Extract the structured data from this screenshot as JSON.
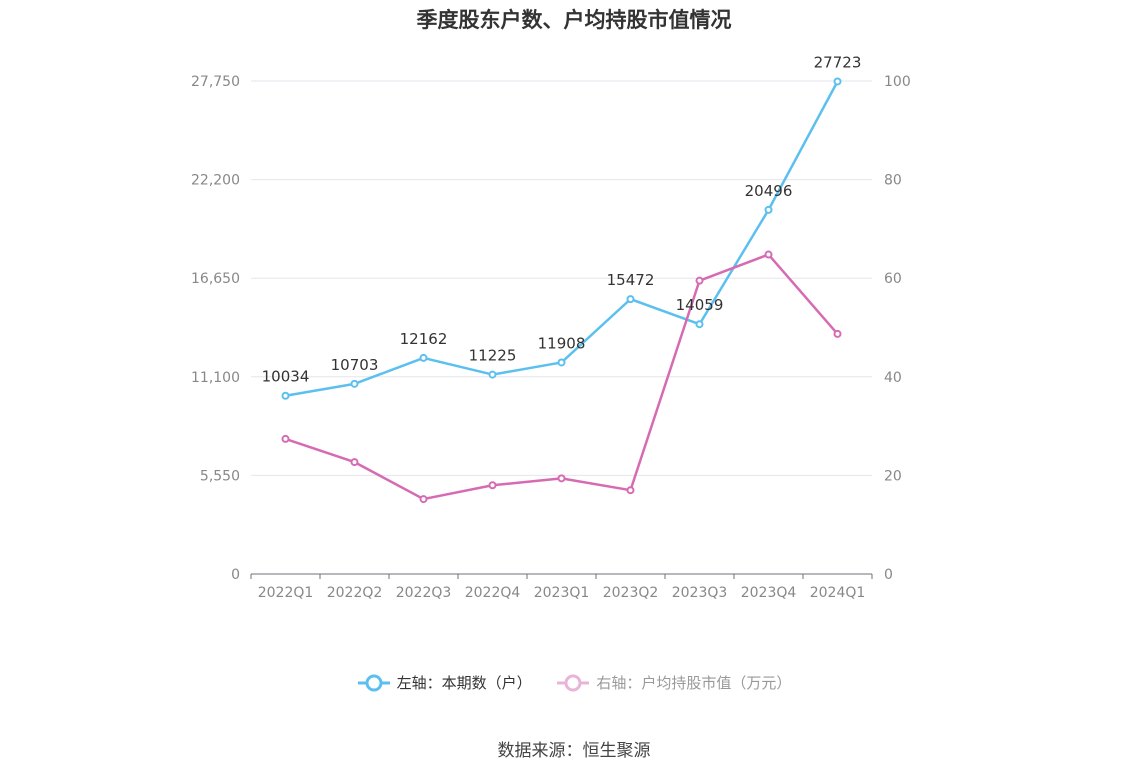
{
  "title": "季度股东户数、户均持股市值情况",
  "source": "数据来源：恒生聚源",
  "chart_data": {
    "type": "line",
    "categories": [
      "2022Q1",
      "2022Q2",
      "2022Q3",
      "2022Q4",
      "2023Q1",
      "2023Q2",
      "2023Q3",
      "2023Q4",
      "2024Q1"
    ],
    "left_axis": {
      "ticks": [
        "0",
        "5,550",
        "11,100",
        "16,650",
        "22,200",
        "27,750"
      ],
      "ylim": [
        0,
        27750
      ]
    },
    "right_axis": {
      "ticks": [
        "0",
        "20",
        "40",
        "60",
        "80",
        "100"
      ],
      "ylim": [
        0,
        100
      ]
    },
    "series": [
      {
        "name": "左轴：本期数（户）",
        "axis": "left",
        "color": "#5bc0f0",
        "values": [
          10034,
          10703,
          12162,
          11225,
          11908,
          15472,
          14059,
          20496,
          27723
        ],
        "labels": [
          "10034",
          "10703",
          "12162",
          "11225",
          "11908",
          "15472",
          "14059",
          "20496",
          "27723"
        ]
      },
      {
        "name": "右轴：户均持股市值（万元）",
        "axis": "right",
        "color": "#d66bb3",
        "values": [
          27.4,
          22.7,
          15.2,
          18.0,
          19.4,
          17.0,
          59.5,
          64.8,
          48.7
        ]
      }
    ],
    "legend_position": "bottom",
    "grid": true
  }
}
